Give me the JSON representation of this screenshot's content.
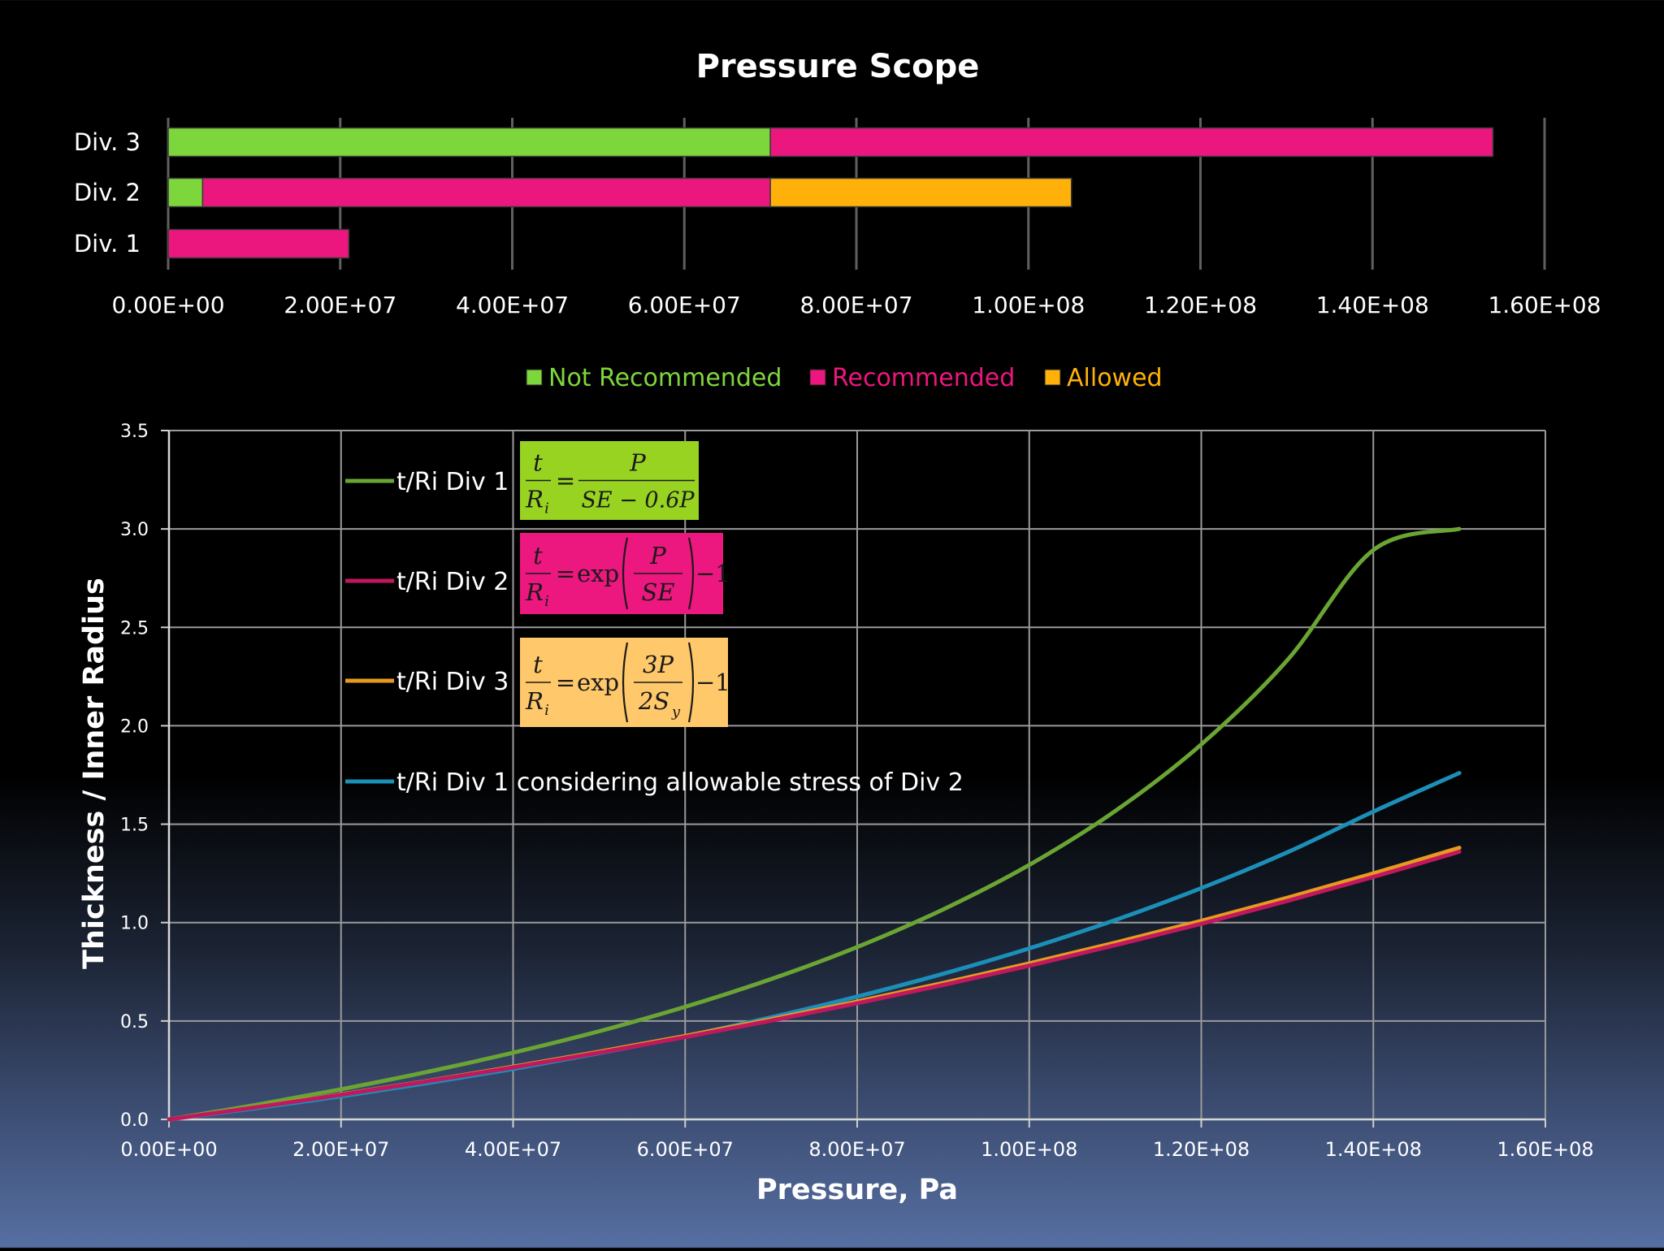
{
  "chart_data": [
    {
      "type": "bar",
      "orientation": "horizontal",
      "stacked": true,
      "title": "Pressure Scope",
      "categories": [
        "Div. 3",
        "Div. 2",
        "Div. 1"
      ],
      "xlim": [
        0,
        160000000
      ],
      "xticks": [
        0,
        20000000,
        40000000,
        60000000,
        80000000,
        100000000,
        120000000,
        140000000,
        160000000
      ],
      "xtick_labels": [
        "0.00E+00",
        "2.00E+07",
        "4.00E+07",
        "6.00E+07",
        "8.00E+07",
        "1.00E+08",
        "1.20E+08",
        "1.40E+08",
        "1.60E+08"
      ],
      "grid": "vertical",
      "legend_position": "bottom",
      "series": [
        {
          "name": "Not Recommended",
          "color": "#7ed63d",
          "values": [
            70000000,
            4000000,
            0
          ]
        },
        {
          "name": "Recommended",
          "color": "#ec167f",
          "values": [
            84000000,
            66000000,
            21000000
          ]
        },
        {
          "name": "Allowed",
          "color": "#ffb10a",
          "values": [
            0,
            35000000,
            0
          ]
        }
      ]
    },
    {
      "type": "line",
      "title": "",
      "xlabel": "Pressure, Pa",
      "ylabel": "Thickness / Inner Radius",
      "xlim": [
        0,
        160000000
      ],
      "ylim": [
        0,
        3.5
      ],
      "xticks": [
        0,
        20000000,
        40000000,
        60000000,
        80000000,
        100000000,
        120000000,
        140000000,
        160000000
      ],
      "xtick_labels": [
        "0.00E+00",
        "2.00E+07",
        "4.00E+07",
        "6.00E+07",
        "8.00E+07",
        "1.00E+08",
        "1.20E+08",
        "1.40E+08",
        "1.60E+08"
      ],
      "yticks": [
        0,
        0.5,
        1,
        1.5,
        2,
        2.5,
        3,
        3.5
      ],
      "ytick_labels": [
        "0.0",
        "0.5",
        "1.0",
        "1.5",
        "2.0",
        "2.5",
        "3.0",
        "3.5"
      ],
      "grid": true,
      "legend_position": "top-left",
      "x": [
        0,
        10000000,
        20000000,
        30000000,
        40000000,
        50000000,
        60000000,
        70000000,
        80000000,
        90000000,
        100000000,
        110000000,
        120000000,
        130000000,
        140000000,
        150000000
      ],
      "series": [
        {
          "name": "t/Ri Div 1",
          "color": "#6aa534",
          "values": [
            0,
            0.073,
            0.153,
            0.241,
            0.339,
            0.448,
            0.572,
            0.713,
            0.876,
            1.067,
            1.293,
            1.567,
            1.905,
            2.333,
            2.893,
            3.0
          ]
        },
        {
          "name": "t/Ri Div 2",
          "color": "#c0185e",
          "values": [
            0,
            0.061,
            0.125,
            0.193,
            0.264,
            0.339,
            0.418,
            0.502,
            0.59,
            0.683,
            0.781,
            0.885,
            0.994,
            1.11,
            1.232,
            1.36
          ]
        },
        {
          "name": "t/Ri Div 3",
          "color": "#e79a1f",
          "values": [
            0,
            0.062,
            0.127,
            0.195,
            0.268,
            0.344,
            0.424,
            0.509,
            0.599,
            0.693,
            0.793,
            0.898,
            1.009,
            1.126,
            1.25,
            1.38
          ]
        },
        {
          "name": "t/Ri Div 1 considering allowable stress of Div 2",
          "color": "#1b8fb8",
          "values": [
            0,
            0.056,
            0.117,
            0.184,
            0.256,
            0.336,
            0.423,
            0.519,
            0.624,
            0.74,
            0.869,
            1.013,
            1.175,
            1.357,
            1.564,
            1.76
          ]
        }
      ]
    }
  ],
  "equations": [
    {
      "for": "t/Ri Div 1",
      "bg": "#97d320",
      "num": "t",
      "den": "R",
      "den_sub": "i",
      "rhs_num": "P",
      "rhs_den": "SE − 0.6P"
    },
    {
      "for": "t/Ri Div 2",
      "bg": "#ec177f",
      "num": "t",
      "den": "R",
      "den_sub": "i",
      "func": "exp",
      "inner_num": "P",
      "inner_den": "SE",
      "tail": "−1"
    },
    {
      "for": "t/Ri Div 3",
      "bg": "#ffc86a",
      "num": "t",
      "den": "R",
      "den_sub": "i",
      "func": "exp",
      "inner_num": "3P",
      "inner_den": "2S",
      "inner_den_sub": "y",
      "tail": "−1"
    }
  ]
}
